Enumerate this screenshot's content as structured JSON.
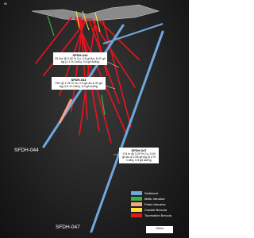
{
  "compass": "W",
  "callouts": [
    {
      "title": "SFDH-044",
      "text": "33.3m @ 0.62 % Cu, 2.6 g/t Au, 8.47 g/t Ag (1.1 % CuEq, 3.6 g/t AuEq)"
    },
    {
      "title": "SFDH-044",
      "text": "79m @ 1.25 % Cu, 0.5 g/t Au & 32 g/t Ag (1.6 % CuEq, 2.0 g/t AuEq)"
    },
    {
      "title": "SFDH-047",
      "text": "174 m @ 0.29 % Cu, 0.04 g/t Au & 2.05 g/t Ag (0.4 % CuEq, 0.5 g/t AuEq)"
    }
  ],
  "hole_labels": [
    "SFDH-044",
    "SFDH-047"
  ],
  "legend": [
    {
      "label": "Sediment",
      "color": "#6fa8dc"
    },
    {
      "label": "Mafic Intrusive",
      "color": "#3cb043"
    },
    {
      "label": "Felsic Intrusive",
      "color": "#f4a582"
    },
    {
      "label": "Crackle Breccia",
      "color": "#ffe135"
    },
    {
      "label": "Tourmaline Breccia",
      "color": "#e8141c"
    }
  ],
  "scale": "100m"
}
